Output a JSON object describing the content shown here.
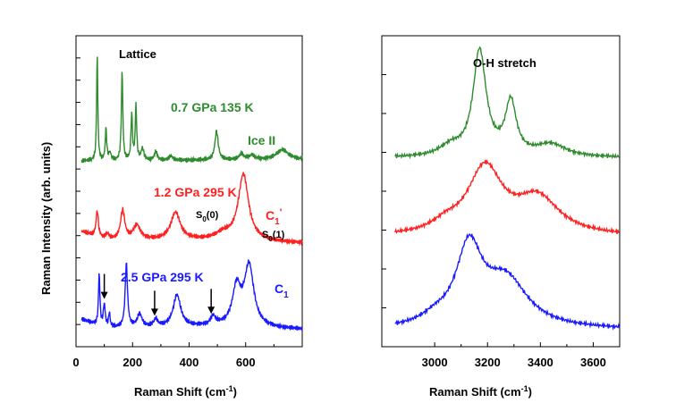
{
  "chart_data": [
    {
      "type": "line",
      "panel": "left",
      "xlabel": "Raman Shift (cm",
      "xlabel_sup": "-1",
      "xlabel_close": ")",
      "ylabel": "Raman Intensity (arb. units)",
      "xlim": [
        0,
        800
      ],
      "xticks": [
        0,
        200,
        400,
        600
      ],
      "annotations": {
        "top_label": "Lattice",
        "s0_0": {
          "base": "S",
          "sub": "0",
          "rest": "(0)"
        },
        "s0_1": {
          "base": "S",
          "sub": "0",
          "rest": "(1)"
        }
      },
      "series": [
        {
          "label": "0.7 GPa 135 K",
          "phase": "Ice II",
          "color": "#2e8b2e",
          "baseline": 5.85,
          "bg": [
            [
              20,
              0.0
            ],
            [
              800,
              0.05
            ]
          ],
          "peaks": [
            [
              75,
              3.7,
              2.5
            ],
            [
              106,
              1.1,
              3
            ],
            [
              120,
              0.25,
              5
            ],
            [
              163,
              3.1,
              3
            ],
            [
              197,
              1.6,
              3
            ],
            [
              212,
              1.9,
              3
            ],
            [
              235,
              0.4,
              6
            ],
            [
              282,
              0.3,
              6
            ],
            [
              335,
              0.15,
              8
            ],
            [
              497,
              1.0,
              7
            ],
            [
              585,
              0.2,
              10
            ],
            [
              622,
              0.15,
              12
            ],
            [
              730,
              0.35,
              25
            ]
          ]
        },
        {
          "label": "1.2 GPa 295 K",
          "phase_parts": {
            "base": "C",
            "sub": "1",
            "prime": "'"
          },
          "color": "#ff2020",
          "baseline": 3.0,
          "bg": [
            [
              20,
              0.4
            ],
            [
              100,
              0.1
            ],
            [
              500,
              0.1
            ],
            [
              800,
              0.0
            ]
          ],
          "peaks": [
            [
              75,
              0.9,
              5
            ],
            [
              110,
              0.2,
              8
            ],
            [
              165,
              1.0,
              9
            ],
            [
              215,
              0.5,
              15
            ],
            [
              352,
              0.95,
              20
            ],
            [
              592,
              2.3,
              22
            ],
            [
              520,
              0.2,
              30
            ]
          ]
        },
        {
          "label": "2.5 GPa 295 K",
          "phase_parts": {
            "base": "C",
            "sub": "1"
          },
          "color": "#1a1aff",
          "baseline": 0.0,
          "bg": [
            [
              20,
              0.35
            ],
            [
              100,
              0.05
            ],
            [
              500,
              0.1
            ],
            [
              800,
              0.0
            ]
          ],
          "peaks": [
            [
              82,
              1.8,
              3
            ],
            [
              100,
              0.8,
              4
            ],
            [
              118,
              0.5,
              3
            ],
            [
              178,
              2.2,
              5
            ],
            [
              225,
              0.45,
              10
            ],
            [
              282,
              0.25,
              8
            ],
            [
              357,
              1.1,
              16
            ],
            [
              485,
              0.3,
              10
            ],
            [
              568,
              1.3,
              18
            ],
            [
              612,
              2.1,
              20
            ]
          ]
        }
      ],
      "arrows_x": [
        100,
        278,
        478
      ]
    },
    {
      "type": "line",
      "panel": "right",
      "title": "O-H stretch",
      "xlabel": "Raman Shift (cm",
      "xlabel_sup": "-1",
      "xlabel_close": ")",
      "xlim": [
        2800,
        3700
      ],
      "xticks": [
        3000,
        3200,
        3400,
        3600
      ],
      "series": [
        {
          "name": "0.7 GPa 135 K",
          "color": "#2e8b2e",
          "baseline": 6.2,
          "bg": [
            [
              2850,
              0.0
            ],
            [
              3700,
              0.0
            ]
          ],
          "peaks": [
            [
              3170,
              3.8,
              30
            ],
            [
              3288,
              1.9,
              25
            ],
            [
              3060,
              0.35,
              50
            ],
            [
              3440,
              0.45,
              70
            ]
          ]
        },
        {
          "name": "1.2 GPa 295 K",
          "color": "#ff2020",
          "baseline": 3.35,
          "bg": [
            [
              2850,
              0.0
            ],
            [
              3700,
              0.0
            ]
          ],
          "peaks": [
            [
              3190,
              2.4,
              80
            ],
            [
              3390,
              1.3,
              100
            ],
            [
              3040,
              0.3,
              60
            ]
          ]
        },
        {
          "name": "2.5 GPa 295 K",
          "color": "#1a1aff",
          "baseline": 0.0,
          "bg": [
            [
              2850,
              0.0
            ],
            [
              3700,
              0.0
            ]
          ],
          "peaks": [
            [
              3130,
              2.8,
              60
            ],
            [
              3270,
              1.7,
              100
            ],
            [
              3000,
              0.25,
              60
            ]
          ]
        }
      ]
    }
  ]
}
